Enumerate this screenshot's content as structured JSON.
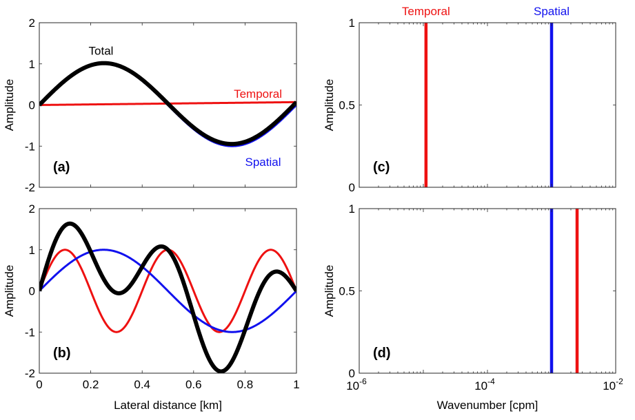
{
  "colors": {
    "temporal": "#ee1111",
    "spatial": "#1111ee",
    "total": "#000000",
    "axis": "#262626"
  },
  "chart_data": [
    {
      "id": "a",
      "type": "line",
      "panel_label": "(a)",
      "ylabel": "Amplitude",
      "xlim": [
        0,
        1
      ],
      "ylim": [
        -2,
        2
      ],
      "yticks": [
        -2,
        -1,
        0,
        1,
        2
      ],
      "xticks": [
        0,
        0.2,
        0.4,
        0.6,
        0.8,
        1
      ],
      "show_xtick_labels": false,
      "series": [
        {
          "name": "Temporal",
          "color": "temporal",
          "width": 3,
          "func": "temporal_a"
        },
        {
          "name": "Spatial",
          "color": "spatial",
          "width": 3,
          "func": "spatial"
        },
        {
          "name": "Total",
          "color": "total",
          "width": 6,
          "func": "total_a"
        }
      ],
      "annotations": [
        {
          "text": "Total",
          "color": "total",
          "at": [
            0.24,
            1.32
          ]
        },
        {
          "text": "Temporal",
          "color": "temporal",
          "at": [
            0.85,
            0.28
          ]
        },
        {
          "text": "Spatial",
          "color": "spatial",
          "at": [
            0.87,
            -1.38
          ]
        }
      ]
    },
    {
      "id": "b",
      "type": "line",
      "panel_label": "(b)",
      "xlabel": "Lateral distance [km]",
      "ylabel": "Amplitude",
      "xlim": [
        0,
        1
      ],
      "ylim": [
        -2,
        2
      ],
      "yticks": [
        -2,
        -1,
        0,
        1,
        2
      ],
      "xticks": [
        0,
        0.2,
        0.4,
        0.6,
        0.8,
        1
      ],
      "show_xtick_labels": true,
      "series": [
        {
          "color": "temporal",
          "width": 3,
          "func": "temporal_b"
        },
        {
          "color": "spatial",
          "width": 3,
          "func": "spatial"
        },
        {
          "color": "total",
          "width": 6,
          "func": "total_b"
        }
      ]
    },
    {
      "id": "c",
      "type": "line",
      "panel_label": "(c)",
      "ylabel": "Amplitude",
      "xscale": "log",
      "xlim": [
        1e-06,
        0.01
      ],
      "ylim": [
        0,
        1
      ],
      "yticks": [
        0,
        0.5,
        1
      ],
      "show_xtick_labels": false,
      "vlines": [
        {
          "name": "Temporal",
          "x": 1.1e-05,
          "color": "temporal"
        },
        {
          "name": "Spatial",
          "x": 0.001,
          "color": "spatial"
        }
      ],
      "top_labels": [
        {
          "text": "Temporal",
          "x": 1.1e-05,
          "color": "temporal"
        },
        {
          "text": "Spatial",
          "x": 0.001,
          "color": "spatial"
        }
      ]
    },
    {
      "id": "d",
      "type": "line",
      "panel_label": "(d)",
      "xlabel": "Wavenumber [cpm]",
      "ylabel": "Amplitude",
      "xscale": "log",
      "xlim": [
        1e-06,
        0.01
      ],
      "ylim": [
        0,
        1
      ],
      "yticks": [
        0,
        0.5,
        1
      ],
      "show_xtick_labels": true,
      "vlines": [
        {
          "x": 0.001,
          "color": "spatial"
        },
        {
          "x": 0.0025,
          "color": "temporal"
        }
      ]
    }
  ]
}
